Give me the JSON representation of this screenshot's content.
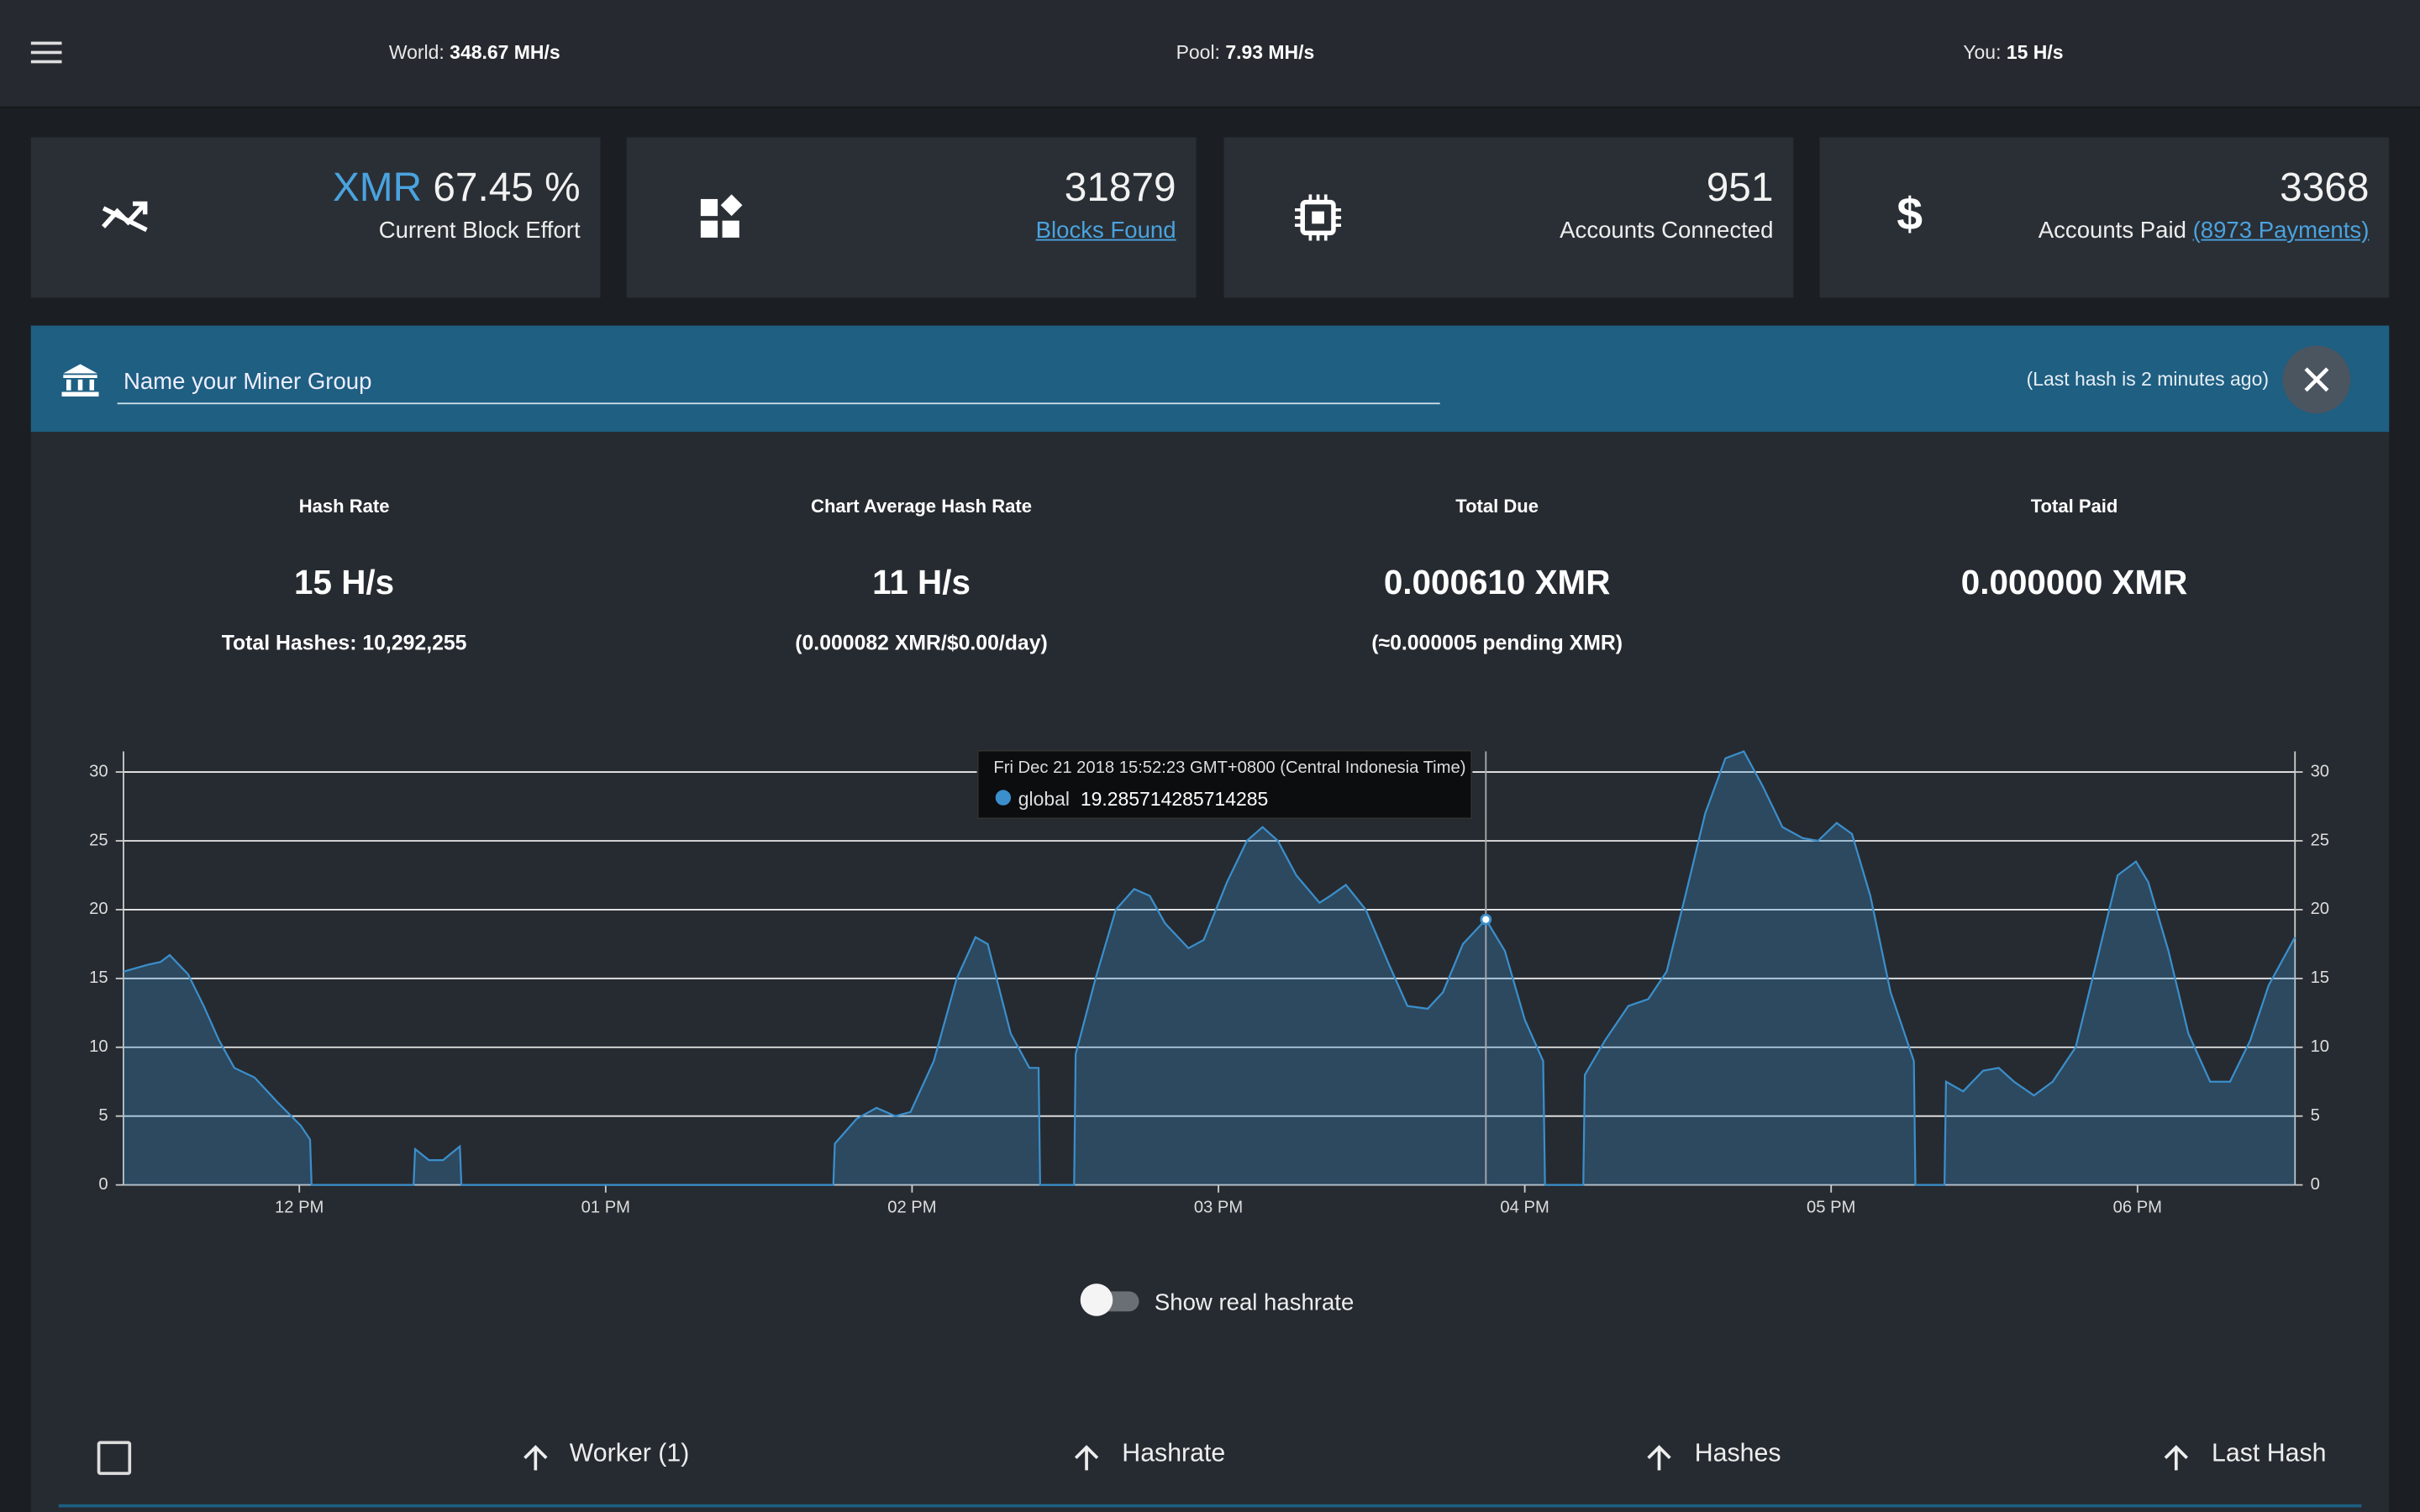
{
  "top_bar": {
    "world_label": "World:",
    "world_value": "348.67 MH/s",
    "pool_label": "Pool:",
    "pool_value": "7.93 MH/s",
    "you_label": "You:",
    "you_value": "15 H/s"
  },
  "stat_cards": [
    {
      "prefix": "XMR",
      "value": "67.45 %",
      "label": "Current Block Effort"
    },
    {
      "value": "31879",
      "label": "Blocks Found"
    },
    {
      "value": "951",
      "label": "Accounts Connected"
    },
    {
      "value": "3368",
      "label": "Accounts Paid",
      "extra": "(8973 Payments)"
    }
  ],
  "miner_group": {
    "placeholder": "Name your Miner Group",
    "last_hash": "(Last hash is 2 minutes ago)"
  },
  "summary": [
    {
      "title": "Hash Rate",
      "value": "15 H/s",
      "note": "Total Hashes: 10,292,255"
    },
    {
      "title": "Chart Average Hash Rate",
      "value": "11 H/s",
      "note": "(0.000082 XMR/$0.00/day)"
    },
    {
      "title": "Total Due",
      "value": "0.000610 XMR",
      "note": "(≈0.000005 pending XMR)"
    },
    {
      "title": "Total Paid",
      "value": "0.000000 XMR"
    }
  ],
  "chart_data": {
    "type": "area",
    "x": [
      11.426,
      11.506,
      11.547,
      11.577,
      11.637,
      11.688,
      11.738,
      11.788,
      11.854,
      11.929,
      12.005,
      12.035,
      12.04,
      12.373,
      12.378,
      12.423,
      12.469,
      12.524,
      12.529,
      13.743,
      13.748,
      13.819,
      13.884,
      13.945,
      13.995,
      14.071,
      14.146,
      14.207,
      14.247,
      14.322,
      14.383,
      14.413,
      14.418,
      14.529,
      14.534,
      14.599,
      14.665,
      14.725,
      14.776,
      14.826,
      14.902,
      14.952,
      15.028,
      15.093,
      15.144,
      15.194,
      15.254,
      15.33,
      15.365,
      15.416,
      15.481,
      15.557,
      15.617,
      15.683,
      15.733,
      15.798,
      15.873,
      15.935,
      16.0,
      16.06,
      16.066,
      16.191,
      16.196,
      16.262,
      16.338,
      16.403,
      16.463,
      16.524,
      16.589,
      16.655,
      16.715,
      16.776,
      16.841,
      16.907,
      16.957,
      17.018,
      17.068,
      17.128,
      17.194,
      17.27,
      17.275,
      17.37,
      17.375,
      17.431,
      17.496,
      17.547,
      17.597,
      17.662,
      17.723,
      17.798,
      17.864,
      17.935,
      17.995,
      18.035,
      18.101,
      18.166,
      18.237,
      18.302,
      18.368,
      18.428,
      18.514
    ],
    "series": [
      {
        "name": "global",
        "color": "#3b8fcc",
        "values": [
          15.5,
          16,
          16.2,
          16.7,
          15.3,
          13,
          10.5,
          8.5,
          7.8,
          6,
          4.3,
          3.3,
          0,
          0,
          2.6,
          1.8,
          1.8,
          2.8,
          0,
          0,
          3,
          4.8,
          5.6,
          5,
          5.3,
          9,
          15,
          18,
          17.5,
          11,
          8.5,
          8.5,
          0,
          0,
          9.5,
          15,
          20,
          21.5,
          21,
          19,
          17.2,
          17.8,
          22,
          25,
          26,
          25,
          22.5,
          20.5,
          21,
          21.8,
          20,
          16,
          13,
          12.8,
          14,
          17.5,
          19.285714285714285,
          17,
          12,
          9,
          0,
          0,
          8,
          10.5,
          13,
          13.5,
          15.5,
          21,
          27,
          31,
          31.5,
          29,
          26,
          25.2,
          25,
          26.3,
          25.5,
          21,
          14,
          9,
          0,
          0,
          7.5,
          6.8,
          8.3,
          8.5,
          7.5,
          6.5,
          7.5,
          10,
          16,
          22.5,
          23.5,
          22,
          17,
          11,
          7.5,
          7.5,
          10.5,
          14.5,
          18
        ]
      }
    ],
    "xlim": [
      11.426,
      18.514
    ],
    "xticks": [
      {
        "value": 12,
        "label": "12 PM"
      },
      {
        "value": 13,
        "label": "01 PM"
      },
      {
        "value": 14,
        "label": "02 PM"
      },
      {
        "value": 15,
        "label": "03 PM"
      },
      {
        "value": 16,
        "label": "04 PM"
      },
      {
        "value": 17,
        "label": "05 PM"
      },
      {
        "value": 18,
        "label": "06 PM"
      }
    ],
    "ylim": [
      0,
      31.5
    ],
    "yticks": [
      0,
      5,
      10,
      15,
      20,
      25,
      30
    ],
    "y2lim": [
      0,
      31.5
    ],
    "y2ticks": [
      0,
      5,
      10,
      15,
      20,
      25,
      30
    ],
    "grid": true,
    "tooltip": {
      "title": "Fri Dec 21 2018 15:52:23 GMT+0800 (Central Indonesia Time)",
      "series": "global",
      "value": 19.285714285714285
    }
  },
  "toggle_label": "Show real hashrate",
  "table": {
    "headers": [
      "Worker (1)",
      "Hashrate",
      "Hashes",
      "Last Hash"
    ]
  }
}
